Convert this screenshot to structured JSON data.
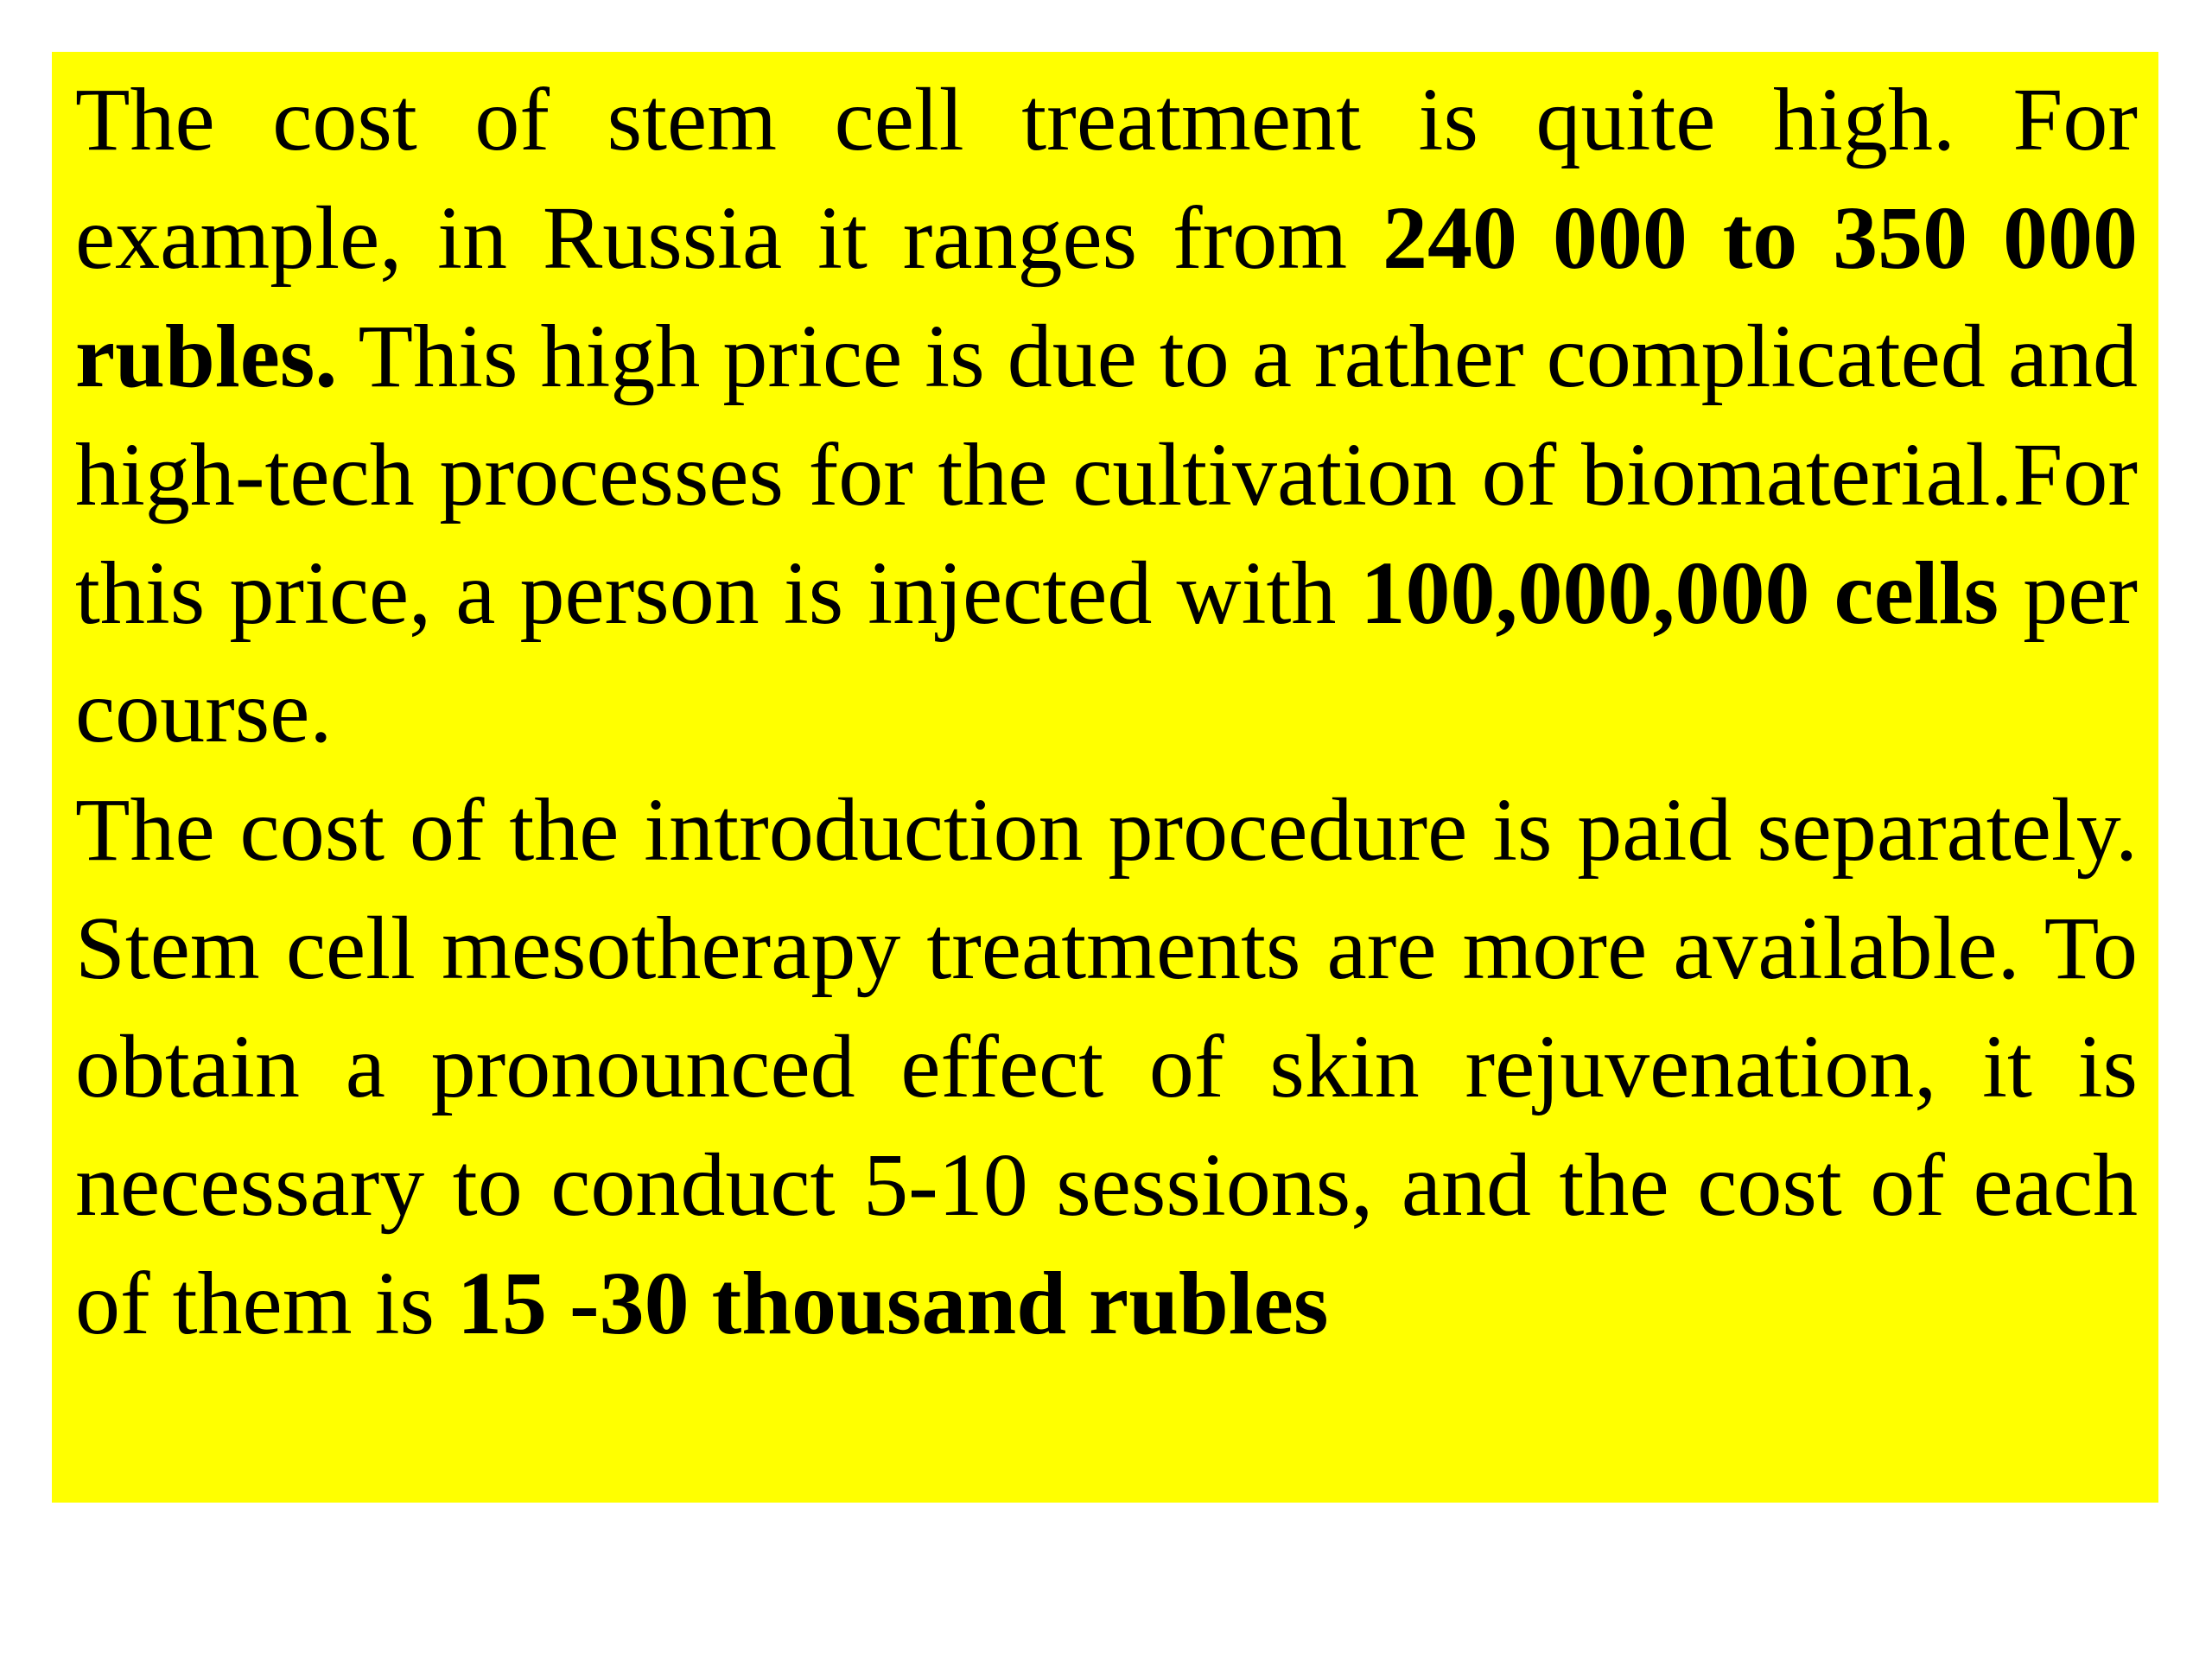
{
  "paragraphs": [
    {
      "runs": [
        {
          "text": "The cost of stem cell treatment is quite high. For example, in Russia it ranges from ",
          "bold": false
        },
        {
          "text": "240 000 to 350 000 rubles.",
          "bold": true
        },
        {
          "text": " This high price is due to a rather complicated and high-tech processes for the cultivation of biomaterial.For this price, a person is injected with ",
          "bold": false
        },
        {
          "text": "100,000,000 cells",
          "bold": true
        },
        {
          "text": " per course.",
          "bold": false
        }
      ]
    },
    {
      "runs": [
        {
          "text": "The cost of the introduction procedure is paid separately. Stem cell mesotherapy treatments are more available. To obtain a pronounced effect of skin rejuvenation, it is necessary to conduct 5-10 sessions, and the cost of each of them is ",
          "bold": false
        },
        {
          "text": "15 -30 thousand rubles",
          "bold": true
        }
      ]
    }
  ]
}
